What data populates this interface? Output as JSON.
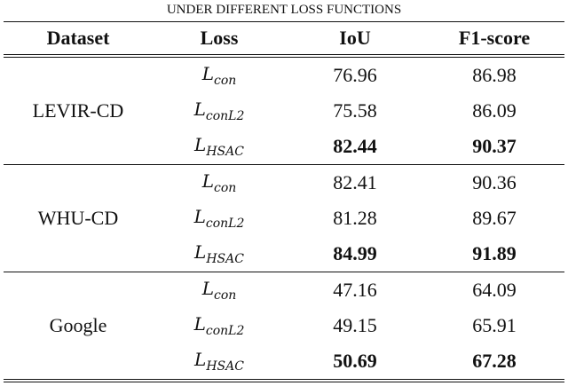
{
  "caption": "UNDER DIFFERENT LOSS FUNCTIONS",
  "header": [
    "Dataset",
    "Loss",
    "IoU",
    "F1-score"
  ],
  "groups": [
    {
      "dataset": "LEVIR-CD",
      "rows": [
        {
          "loss": {
            "base": "L",
            "sub": "con"
          },
          "iou": 76.96,
          "f1": 86.98
        },
        {
          "loss": {
            "base": "L",
            "sub": "conL2"
          },
          "iou": 75.58,
          "f1": 86.09
        },
        {
          "loss": {
            "base": "L",
            "sub": "HSAC"
          },
          "iou": 82.44,
          "f1": 90.37
        }
      ]
    },
    {
      "dataset": "WHU-CD",
      "rows": [
        {
          "loss": {
            "base": "L",
            "sub": "con"
          },
          "iou": 82.41,
          "f1": 90.36
        },
        {
          "loss": {
            "base": "L",
            "sub": "conL2"
          },
          "iou": 81.28,
          "f1": 89.67
        },
        {
          "loss": {
            "base": "L",
            "sub": "HSAC"
          },
          "iou": 84.99,
          "f1": 91.89
        }
      ]
    },
    {
      "dataset": "Google",
      "rows": [
        {
          "loss": {
            "base": "L",
            "sub": "con"
          },
          "iou": 47.16,
          "f1": 64.09
        },
        {
          "loss": {
            "base": "L",
            "sub": "conL2"
          },
          "iou": 49.15,
          "f1": 65.91
        },
        {
          "loss": {
            "base": "L",
            "sub": "HSAC"
          },
          "iou": 50.69,
          "f1": 67.28
        }
      ]
    }
  ]
}
